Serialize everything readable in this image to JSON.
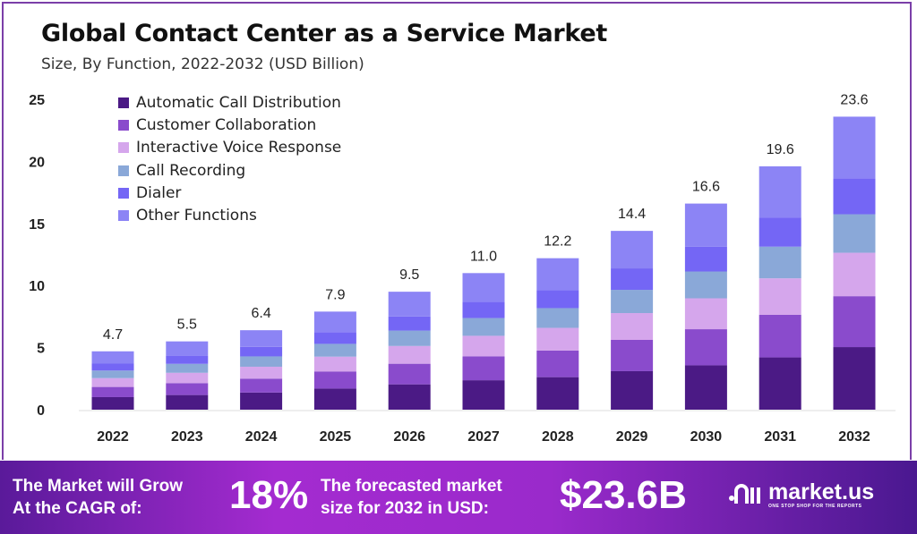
{
  "chart_data": {
    "type": "bar",
    "stacked": true,
    "title": "Global Contact Center as a Service Market",
    "subtitle": "Size, By Function, 2022-2032 (USD Billion)",
    "xlabel": "",
    "ylabel": "",
    "ylim": [
      0,
      25
    ],
    "yticks": [
      "0",
      "5",
      "10",
      "15",
      "20",
      "25"
    ],
    "grid": false,
    "legend_position": "top-left",
    "categories": [
      "2022",
      "2023",
      "2024",
      "2025",
      "2026",
      "2027",
      "2028",
      "2029",
      "2030",
      "2031",
      "2032"
    ],
    "totals": [
      4.7,
      5.5,
      6.4,
      7.9,
      9.5,
      11.0,
      12.2,
      14.4,
      16.6,
      19.6,
      23.6
    ],
    "total_labels": [
      "4.7",
      "5.5",
      "6.4",
      "7.9",
      "9.5",
      "11.0",
      "12.2",
      "14.4",
      "16.6",
      "19.6",
      "23.6"
    ],
    "series": [
      {
        "name": "Automatic Call Distribution",
        "color": "#4b1a85",
        "values": [
          1.01,
          1.18,
          1.38,
          1.7,
          2.04,
          2.37,
          2.62,
          3.1,
          3.57,
          4.21,
          5.04
        ]
      },
      {
        "name": "Customer Collaboration",
        "color": "#8a4bcc",
        "values": [
          0.82,
          0.96,
          1.12,
          1.38,
          1.66,
          1.93,
          2.14,
          2.52,
          2.91,
          3.43,
          4.1
        ]
      },
      {
        "name": "Interactive Voice Response",
        "color": "#d5a6ec",
        "values": [
          0.71,
          0.83,
          0.96,
          1.19,
          1.43,
          1.65,
          1.83,
          2.16,
          2.49,
          2.94,
          3.5
        ]
      },
      {
        "name": "Call Recording",
        "color": "#8aa8d8",
        "values": [
          0.61,
          0.72,
          0.83,
          1.03,
          1.24,
          1.43,
          1.59,
          1.87,
          2.16,
          2.55,
          3.1
        ]
      },
      {
        "name": "Dialer",
        "color": "#7466f5",
        "values": [
          0.56,
          0.66,
          0.77,
          0.95,
          1.14,
          1.32,
          1.46,
          1.73,
          1.99,
          2.35,
          2.9
        ]
      },
      {
        "name": "Other Functions",
        "color": "#8c84f5",
        "values": [
          0.99,
          1.15,
          1.34,
          1.65,
          1.99,
          2.3,
          2.56,
          3.02,
          3.48,
          4.12,
          4.96
        ]
      }
    ]
  },
  "footer": {
    "cagr_text_line1": "The Market will Grow",
    "cagr_text_line2": "At the CAGR of:",
    "cagr_value": "18%",
    "forecast_text_line1": "The forecasted market",
    "forecast_text_line2": "size for 2032 in USD:",
    "forecast_value": "$23.6B",
    "logo_name": "market.us",
    "logo_tagline": "ONE STOP SHOP FOR THE REPORTS"
  }
}
